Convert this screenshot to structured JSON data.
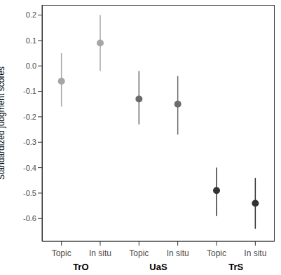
{
  "chart_data": {
    "type": "scatter",
    "ylabel": "Standardized judgment scores",
    "categories": [
      "Topic",
      "In situ",
      "Topic",
      "In situ",
      "Topic",
      "In situ"
    ],
    "groups": [
      "TrO",
      "TrO",
      "UaS",
      "UaS",
      "TrS",
      "TrS"
    ],
    "values": [
      -0.06,
      0.09,
      -0.13,
      -0.15,
      -0.49,
      -0.54
    ],
    "ci_low": [
      -0.16,
      -0.02,
      -0.23,
      -0.27,
      -0.59,
      -0.64
    ],
    "ci_high": [
      0.05,
      0.2,
      -0.02,
      -0.04,
      -0.4,
      -0.44
    ],
    "colors": [
      "#a6a6a6",
      "#a6a6a6",
      "#6b6b6b",
      "#6b6b6b",
      "#333333",
      "#333333"
    ],
    "ylim": [
      -0.69,
      0.24
    ],
    "yticks": [
      0.2,
      0.1,
      {
        "value": 0,
        "label": "0.0"
      },
      -0.1,
      -0.2,
      -0.3,
      -0.4,
      -0.5,
      -0.6
    ],
    "grid": false
  }
}
